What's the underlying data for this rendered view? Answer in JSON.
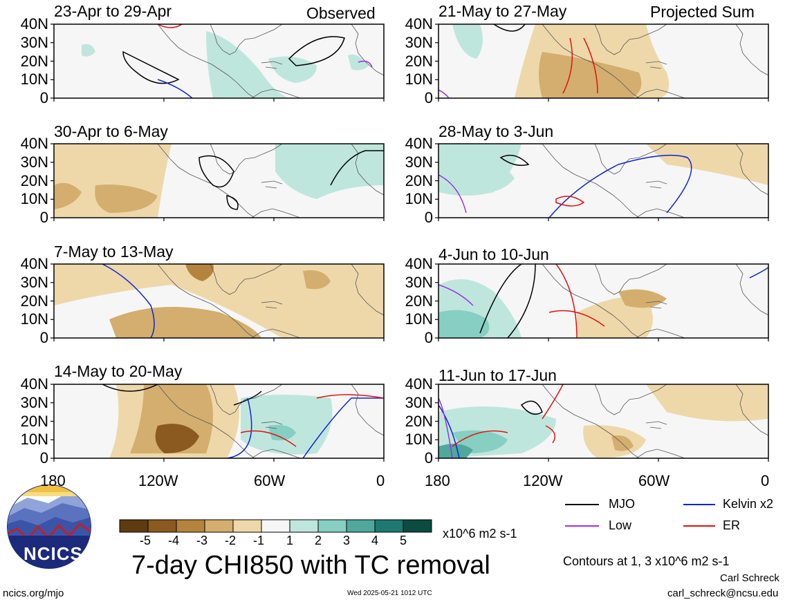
{
  "header": {
    "left_tag": "Observed",
    "right_tag": "Projected Sum"
  },
  "panels": [
    {
      "title": "23-Apr to 29-Apr"
    },
    {
      "title": "21-May to 27-May"
    },
    {
      "title": "30-Apr to 6-May"
    },
    {
      "title": "28-May to 3-Jun"
    },
    {
      "title": "7-May to 13-May"
    },
    {
      "title": "4-Jun to 10-Jun"
    },
    {
      "title": "14-May to 20-May"
    },
    {
      "title": "11-Jun to 17-Jun"
    }
  ],
  "y_axis": [
    "40N",
    "30N",
    "20N",
    "10N",
    "0"
  ],
  "x_axis": [
    "180",
    "120W",
    "60W",
    "0"
  ],
  "colorbar": {
    "labels": [
      "-5",
      "-4",
      "-3",
      "-2",
      "-1",
      "1",
      "2",
      "3",
      "4",
      "5"
    ],
    "units": "x10^6 m2 s-1",
    "colors": [
      "#5e3c10",
      "#8a5a20",
      "#b4843e",
      "#d4ae6e",
      "#eed8aa",
      "#f6f6f6",
      "#bfe6dc",
      "#86cfc2",
      "#4ea89c",
      "#1c7a70",
      "#0a4c40"
    ]
  },
  "legend": {
    "items": [
      {
        "label": "MJO",
        "color": "#000000"
      },
      {
        "label": "Kelvin x2",
        "color": "#0a22dd"
      },
      {
        "label": "Low",
        "color": "#9a30e0"
      },
      {
        "label": "ER",
        "color": "#e01010"
      }
    ],
    "contour_note": "Contours at 1, 3 x10^6 m2 s-1"
  },
  "main_title": "7-day CHI850 with TC removal",
  "logo_text": "NCICS",
  "footer": {
    "url": "ncics.org/mjo",
    "timestamp": "Wed 2025-05-21 1012 UTC",
    "author": "Carl Schreck",
    "email": "carl_schreck@ncsu.edu"
  }
}
